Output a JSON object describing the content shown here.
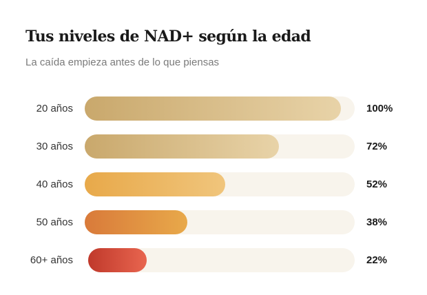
{
  "chart_data": {
    "type": "bar",
    "orientation": "horizontal",
    "title": "Tus niveles de NAD+ según la edad",
    "subtitle": "La caída empieza antes de lo que piensas",
    "categories": [
      "20 años",
      "30 años",
      "40 años",
      "50 años",
      "60+ años"
    ],
    "values": [
      100,
      72,
      52,
      38,
      22
    ],
    "value_labels": [
      "100%",
      "72%",
      "52%",
      "38%",
      "22%"
    ],
    "unit": "%",
    "grid": false,
    "colors": [
      [
        "#c9a86c",
        "#e8d3a8"
      ],
      [
        "#c9a86c",
        "#e8d3a8"
      ],
      [
        "#e8a94a",
        "#f0c57c"
      ],
      [
        "#d97a3a",
        "#e8a94a"
      ],
      [
        "#c0392b",
        "#e8654f"
      ]
    ],
    "track_color": "#f8f4ec"
  }
}
